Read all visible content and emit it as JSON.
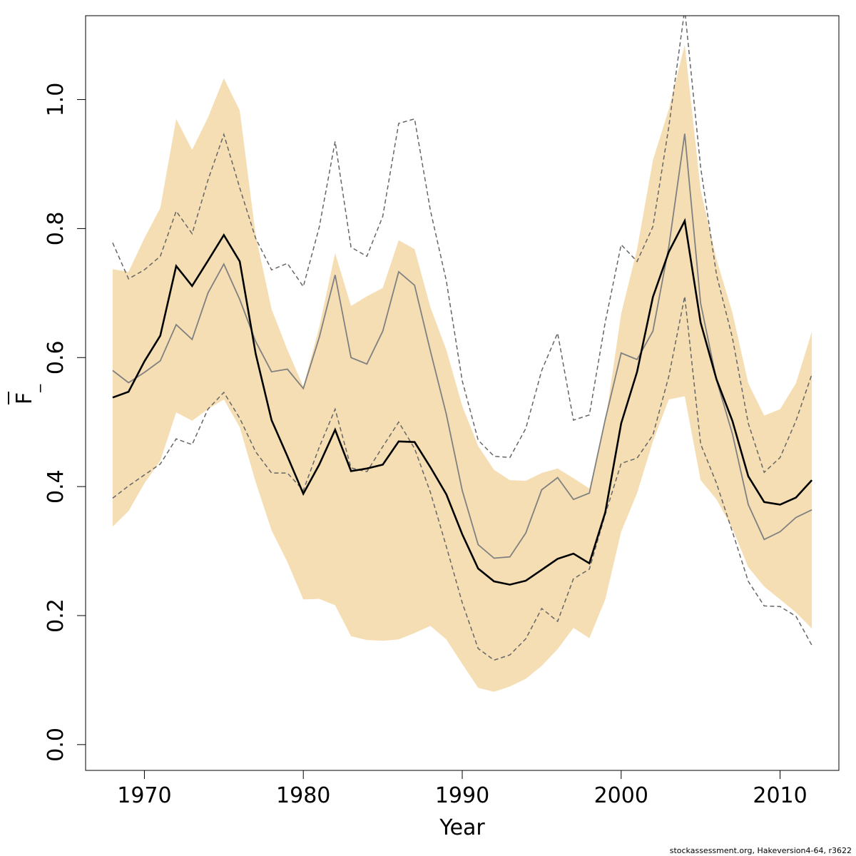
{
  "chart_data": {
    "type": "line",
    "xlabel": "Year",
    "ylabel": "F",
    "ylabel_sub": "_",
    "xlim": [
      1966.3,
      2013.7
    ],
    "ylim": [
      -0.04,
      1.13
    ],
    "x_ticks": [
      1970,
      1980,
      1990,
      2000,
      2010
    ],
    "y_ticks": [
      0.0,
      0.2,
      0.4,
      0.6,
      0.8,
      1.0
    ],
    "y_tick_labels": [
      "0.0",
      "0.2",
      "0.4",
      "0.6",
      "0.8",
      "1.0"
    ],
    "grid": false,
    "colors": {
      "band": "#f5deb3",
      "median": "#000000",
      "mean": "#808080",
      "dashed": "#666666"
    },
    "x": [
      1968,
      1969,
      1970,
      1971,
      1972,
      1973,
      1974,
      1975,
      1976,
      1977,
      1978,
      1979,
      1980,
      1981,
      1982,
      1983,
      1984,
      1985,
      1986,
      1987,
      1988,
      1989,
      1990,
      1991,
      1992,
      1993,
      1994,
      1995,
      1996,
      1997,
      1998,
      1999,
      2000,
      2001,
      2002,
      2003,
      2004,
      2005,
      2006,
      2007,
      2008,
      2009,
      2010,
      2011,
      2012
    ],
    "band_upper": [
      0.737,
      0.733,
      0.785,
      0.832,
      0.97,
      0.922,
      0.972,
      1.033,
      0.983,
      0.79,
      0.675,
      0.612,
      0.555,
      0.647,
      0.762,
      0.68,
      0.695,
      0.708,
      0.782,
      0.768,
      0.678,
      0.612,
      0.525,
      0.463,
      0.426,
      0.41,
      0.409,
      0.421,
      0.428,
      0.413,
      0.397,
      0.5,
      0.668,
      0.768,
      0.906,
      0.985,
      1.085,
      0.86,
      0.752,
      0.67,
      0.56,
      0.51,
      0.52,
      0.56,
      0.64
    ],
    "band_lower": [
      0.338,
      0.362,
      0.405,
      0.44,
      0.515,
      0.502,
      0.52,
      0.535,
      0.492,
      0.407,
      0.332,
      0.283,
      0.225,
      0.226,
      0.216,
      0.168,
      0.162,
      0.161,
      0.163,
      0.173,
      0.184,
      0.163,
      0.125,
      0.088,
      0.082,
      0.09,
      0.102,
      0.122,
      0.148,
      0.181,
      0.165,
      0.225,
      0.33,
      0.39,
      0.47,
      0.535,
      0.54,
      0.41,
      0.38,
      0.335,
      0.275,
      0.245,
      0.225,
      0.205,
      0.18
    ],
    "series": [
      {
        "style": "median",
        "values": [
          0.538,
          0.547,
          0.594,
          0.634,
          0.742,
          0.711,
          0.75,
          0.79,
          0.749,
          0.606,
          0.503,
          0.447,
          0.389,
          0.434,
          0.488,
          0.424,
          0.428,
          0.434,
          0.47,
          0.469,
          0.43,
          0.388,
          0.326,
          0.273,
          0.253,
          0.248,
          0.254,
          0.271,
          0.288,
          0.296,
          0.281,
          0.36,
          0.498,
          0.578,
          0.694,
          0.764,
          0.812,
          0.654,
          0.566,
          0.502,
          0.416,
          0.376,
          0.372,
          0.383,
          0.41
        ]
      },
      {
        "style": "mean",
        "values": [
          0.58,
          0.561,
          0.577,
          0.595,
          0.651,
          0.628,
          0.7,
          0.745,
          0.69,
          0.625,
          0.578,
          0.582,
          0.552,
          0.631,
          0.728,
          0.6,
          0.59,
          0.641,
          0.733,
          0.712,
          0.61,
          0.512,
          0.394,
          0.31,
          0.289,
          0.291,
          0.328,
          0.395,
          0.414,
          0.38,
          0.39,
          0.504,
          0.607,
          0.597,
          0.641,
          0.772,
          0.947,
          0.684,
          0.565,
          0.482,
          0.372,
          0.318,
          0.33,
          0.352,
          0.364
        ]
      },
      {
        "style": "dashed",
        "values": [
          0.778,
          0.722,
          0.736,
          0.757,
          0.827,
          0.792,
          0.875,
          0.946,
          0.863,
          0.785,
          0.736,
          0.746,
          0.71,
          0.802,
          0.935,
          0.771,
          0.757,
          0.819,
          0.963,
          0.97,
          0.828,
          0.719,
          0.564,
          0.472,
          0.447,
          0.445,
          0.49,
          0.58,
          0.638,
          0.503,
          0.511,
          0.655,
          0.775,
          0.749,
          0.803,
          0.958,
          1.14,
          0.895,
          0.728,
          0.631,
          0.498,
          0.422,
          0.445,
          0.502,
          0.574
        ]
      },
      {
        "style": "dashed",
        "values": [
          0.382,
          0.401,
          0.418,
          0.435,
          0.474,
          0.465,
          0.52,
          0.546,
          0.506,
          0.454,
          0.421,
          0.421,
          0.394,
          0.461,
          0.52,
          0.429,
          0.423,
          0.462,
          0.5,
          0.459,
          0.391,
          0.307,
          0.22,
          0.149,
          0.131,
          0.139,
          0.164,
          0.211,
          0.191,
          0.257,
          0.272,
          0.357,
          0.436,
          0.444,
          0.48,
          0.571,
          0.695,
          0.466,
          0.405,
          0.33,
          0.253,
          0.215,
          0.214,
          0.199,
          0.154
        ]
      }
    ]
  },
  "footer": "stockassessment.org, Hakeversion4-64, r3622"
}
